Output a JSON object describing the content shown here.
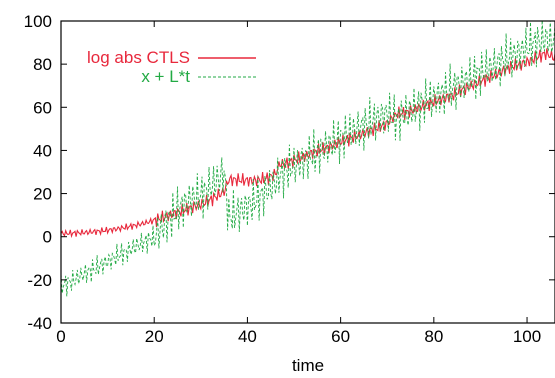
{
  "chart_data": {
    "type": "line",
    "xlabel": "time",
    "ylabel": "",
    "title": "",
    "xlim": [
      0,
      106
    ],
    "ylim": [
      -40,
      100
    ],
    "xticks": [
      "0",
      "20",
      "40",
      "60",
      "80",
      "100"
    ],
    "yticks": [
      "100",
      "80",
      "60",
      "40",
      "20",
      "0",
      "-20",
      "-40"
    ],
    "grid": false,
    "legend_position": "top-left",
    "series": [
      {
        "name": "log abs CTLS",
        "color": "#e8283c",
        "style": "solid",
        "x": [
          0,
          2,
          4,
          6,
          8,
          10,
          12,
          14,
          16,
          18,
          20,
          22,
          24,
          26,
          28,
          30,
          32,
          34,
          35,
          36,
          38,
          40,
          42,
          44,
          46,
          47,
          48,
          50,
          52,
          54,
          56,
          58,
          60,
          62,
          64,
          66,
          68,
          70,
          72,
          74,
          76,
          78,
          80,
          82,
          84,
          86,
          88,
          90,
          92,
          94,
          96,
          98,
          100,
          102,
          104,
          106
        ],
        "y": [
          1.5,
          1.6,
          1.8,
          2.1,
          2.5,
          3.0,
          3.6,
          4.4,
          5.3,
          6.3,
          7.5,
          9.0,
          10.5,
          12.0,
          13.5,
          15.0,
          17.0,
          19.5,
          21.0,
          26.5,
          26.3,
          26.1,
          26.0,
          27.0,
          29.0,
          34.0,
          33.5,
          35.5,
          37.0,
          39.0,
          40.5,
          42.0,
          44.0,
          45.5,
          47.0,
          49.0,
          50.5,
          52.5,
          57.0,
          57.5,
          59.0,
          61.0,
          62.5,
          64.0,
          65.5,
          68.0,
          70.0,
          72.0,
          74.0,
          76.0,
          78.5,
          79.5,
          81.0,
          83.0,
          85.0,
          83.0
        ],
        "oscillation": 3.5
      },
      {
        "name": "x + L*t",
        "color": "#22aa44",
        "style": "dashed",
        "x": [
          0,
          2,
          4,
          6,
          8,
          10,
          12,
          14,
          16,
          18,
          20,
          22,
          24,
          26,
          28,
          30,
          32,
          34,
          35,
          36,
          38,
          40,
          42,
          44,
          46,
          47,
          48,
          50,
          52,
          54,
          56,
          58,
          60,
          62,
          64,
          66,
          68,
          70,
          72,
          74,
          76,
          78,
          80,
          82,
          84,
          86,
          88,
          90,
          92,
          94,
          96,
          98,
          100,
          102,
          104,
          106
        ],
        "y": [
          -23.0,
          -21.0,
          -18.5,
          -16.0,
          -14.0,
          -11.5,
          -9.0,
          -7.0,
          -4.5,
          -2.5,
          0.0,
          5.0,
          10.0,
          14.0,
          17.5,
          19.0,
          23.0,
          27.0,
          30.0,
          9.0,
          11.5,
          14.0,
          17.0,
          21.0,
          25.0,
          28.5,
          30.0,
          33.0,
          35.5,
          38.0,
          40.5,
          43.0,
          45.5,
          48.0,
          50.0,
          52.5,
          55.0,
          57.0,
          54.5,
          57.0,
          59.5,
          62.0,
          64.0,
          66.5,
          69.0,
          71.0,
          73.5,
          76.0,
          78.0,
          80.5,
          83.0,
          85.0,
          87.5,
          90.0,
          92.0,
          90.0
        ],
        "oscillation": 12.0
      }
    ]
  }
}
